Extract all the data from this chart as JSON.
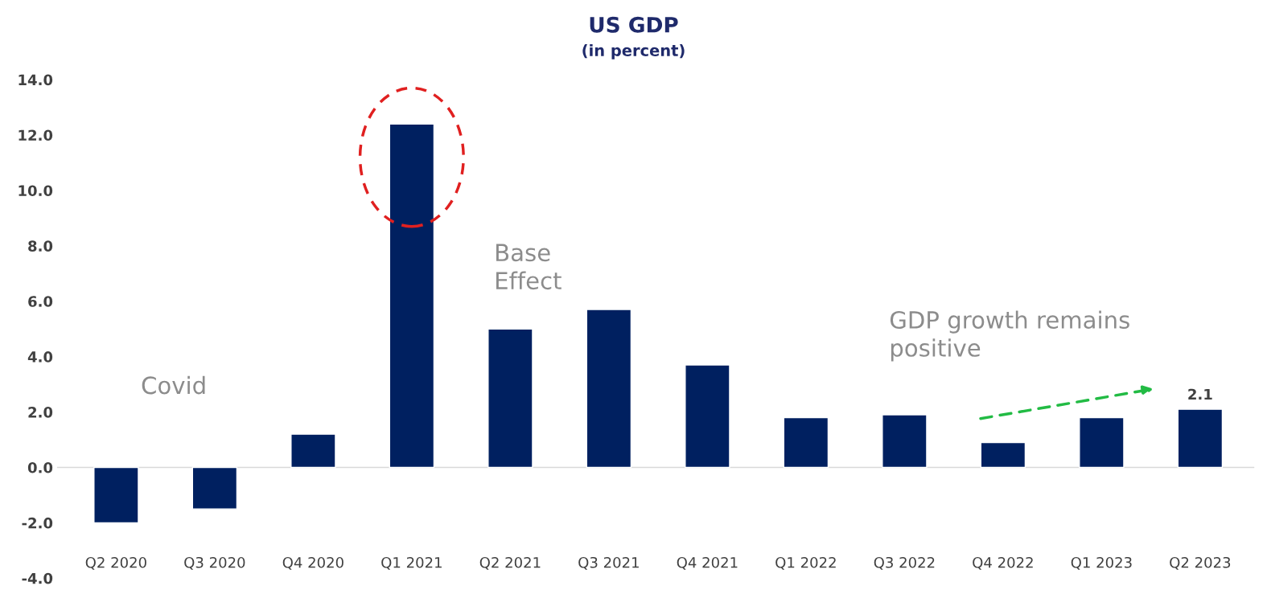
{
  "chart_data": {
    "type": "bar",
    "title": "US GDP",
    "subtitle": "(in percent)",
    "categories": [
      "Q2 2020",
      "Q3 2020",
      "Q4 2020",
      "Q1 2021",
      "Q2 2021",
      "Q3 2021",
      "Q4 2021",
      "Q1 2022",
      "Q3 2022",
      "Q4 2022",
      "Q1 2023",
      "Q2 2023"
    ],
    "values": [
      -2.0,
      -1.5,
      1.2,
      12.4,
      5.0,
      5.7,
      3.7,
      1.8,
      1.9,
      0.9,
      1.8,
      2.1
    ],
    "value_labels": [
      null,
      null,
      null,
      null,
      null,
      null,
      null,
      null,
      null,
      null,
      null,
      "2.1"
    ],
    "color": "#002060",
    "ylim": [
      -4,
      14
    ],
    "yticks": [
      {
        "value": -4,
        "label": "-4.0"
      },
      {
        "value": -2,
        "label": "-2.0"
      },
      {
        "value": 0,
        "label": "0.0"
      },
      {
        "value": 2,
        "label": "2.0"
      },
      {
        "value": 4,
        "label": "4.0"
      },
      {
        "value": 6,
        "label": "6.0"
      },
      {
        "value": 8,
        "label": "8.0"
      },
      {
        "value": 10,
        "label": "10.0"
      },
      {
        "value": 12,
        "label": "12.0"
      },
      {
        "value": 14,
        "label": "14.0"
      }
    ],
    "annotations": [
      "Covid",
      "Base\nEffect",
      "GDP growth remains\npositive"
    ],
    "ref_lines": [
      {
        "axis": "y",
        "value": 0,
        "color": "#d9d9d9"
      }
    ],
    "grid": false,
    "legend": false
  }
}
